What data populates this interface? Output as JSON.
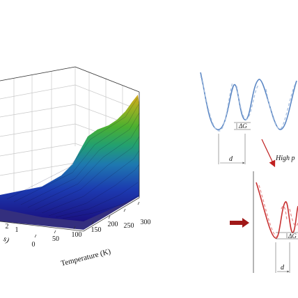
{
  "surface_plot": {
    "x_axis_title": "Temperature (K)",
    "x_ticks": [
      "0",
      "50",
      "100",
      "150",
      "200",
      "250",
      "300"
    ],
    "y_axis_title_fragment": "s)",
    "y_ticks": [
      "2",
      "1"
    ],
    "colormap": [
      "#1a1080",
      "#1c3ab0",
      "#1e78b0",
      "#22a070",
      "#4cb030",
      "#a0b020",
      "#d8a818"
    ]
  },
  "potential_top": {
    "delta_label": "ΔG",
    "distance_label": "d",
    "line_color": "#5a86c4"
  },
  "transition": {
    "label": "High p",
    "arrow_color": "#c02020"
  },
  "potential_bottom": {
    "delta_label": "ΔG",
    "distance_label": "d",
    "line_color": "#c83030",
    "block_arrow_color": "#a01818"
  }
}
